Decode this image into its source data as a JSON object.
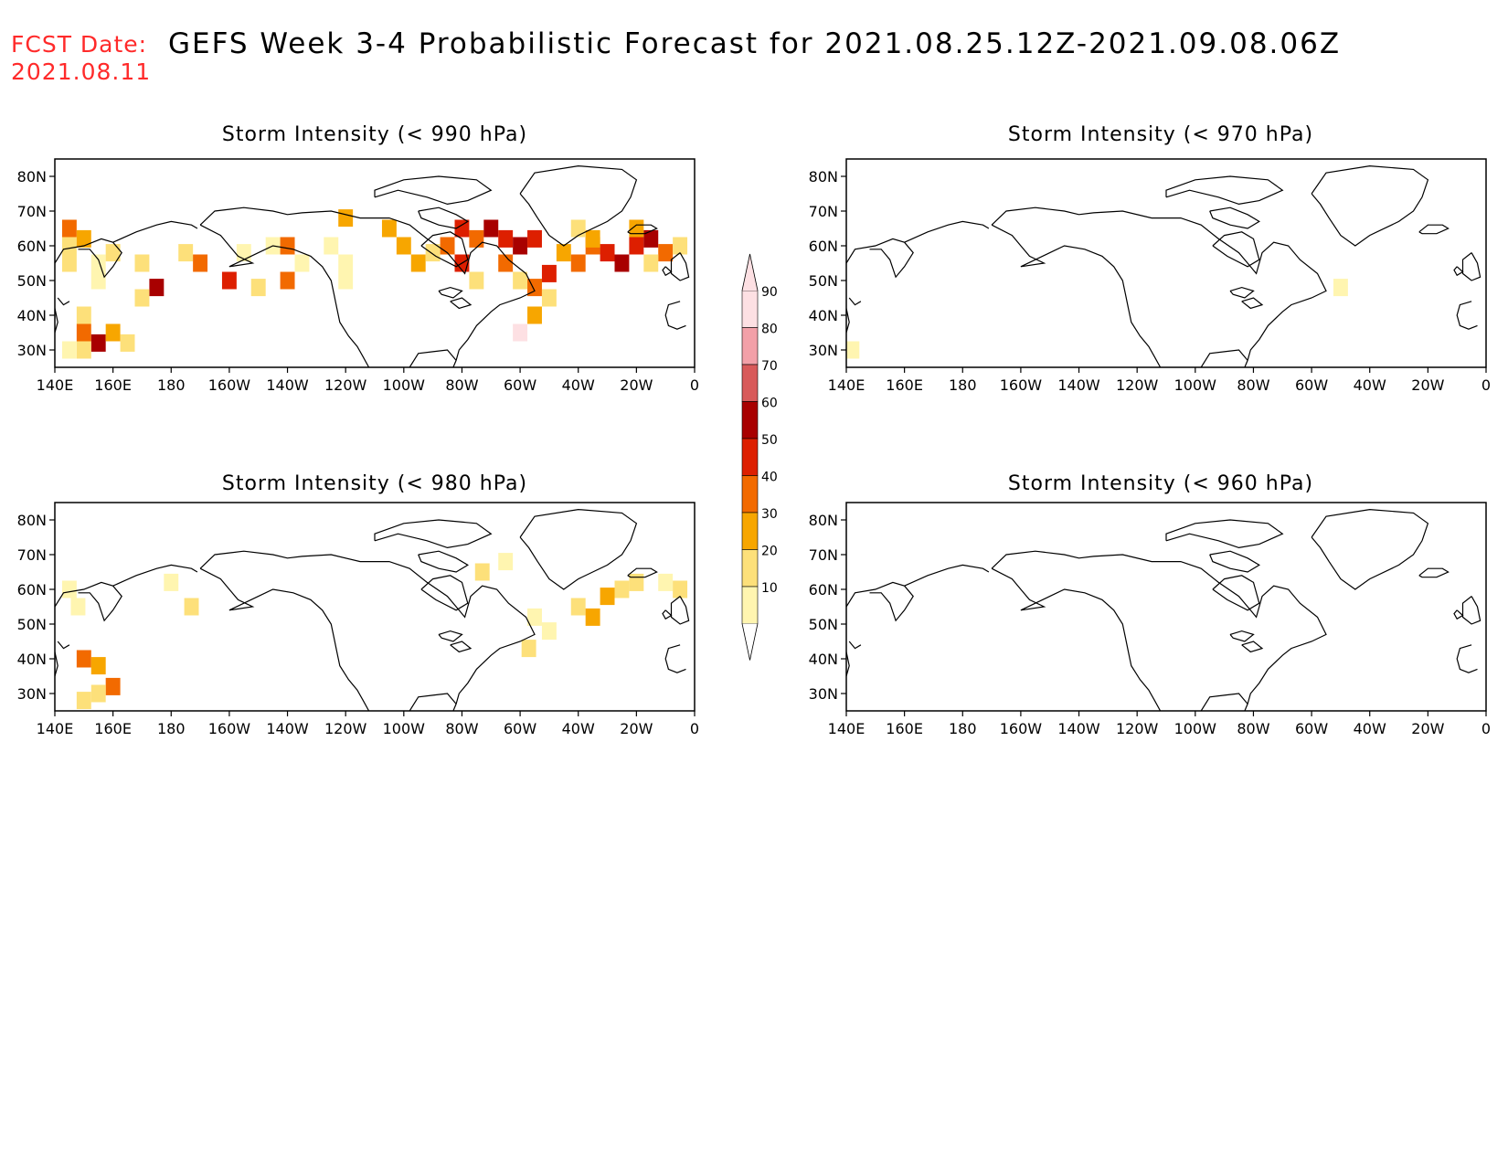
{
  "header": {
    "fcst_label": "FCST Date:",
    "fcst_date": "2021.08.11",
    "title": "GEFS Week 3-4 Probabilistic Forecast for 2021.08.25.12Z-2021.09.08.06Z"
  },
  "axes": {
    "lon_labels": [
      "140E",
      "160E",
      "180",
      "160W",
      "140W",
      "120W",
      "100W",
      "80W",
      "60W",
      "40W",
      "20W",
      "0"
    ],
    "lat_labels": [
      "80N",
      "70N",
      "60N",
      "50N",
      "40N",
      "30N"
    ]
  },
  "colorbar": {
    "levels": [
      "10",
      "20",
      "30",
      "40",
      "50",
      "60",
      "70",
      "80",
      "90"
    ],
    "colors": [
      "#fff5b0",
      "#fde07a",
      "#f7a600",
      "#f26a00",
      "#dd1f00",
      "#a80000",
      "#d85a5a",
      "#f2a0a8",
      "#fde0e3"
    ]
  },
  "panels": [
    {
      "id": "p990",
      "title": "Storm Intensity (< 990 hPa)"
    },
    {
      "id": "p970",
      "title": "Storm Intensity (< 970 hPa)"
    },
    {
      "id": "p980",
      "title": "Storm Intensity (< 980 hPa)"
    },
    {
      "id": "p960",
      "title": "Storm Intensity (< 960 hPa)"
    }
  ],
  "chart_data": {
    "type": "heatmap",
    "units": "probability (%)",
    "lon_range": [
      140,
      360
    ],
    "lat_range": [
      25,
      85
    ],
    "grid_step_deg": 5,
    "panels": [
      {
        "threshold_hpa": 990,
        "cells": [
          [
            145,
            65,
            40
          ],
          [
            145,
            60,
            20
          ],
          [
            150,
            62,
            30
          ],
          [
            145,
            55,
            20
          ],
          [
            155,
            55,
            10
          ],
          [
            160,
            58,
            20
          ],
          [
            155,
            50,
            10
          ],
          [
            150,
            40,
            20
          ],
          [
            150,
            35,
            40
          ],
          [
            155,
            32,
            60
          ],
          [
            160,
            35,
            30
          ],
          [
            165,
            32,
            20
          ],
          [
            150,
            30,
            20
          ],
          [
            145,
            30,
            10
          ],
          [
            170,
            55,
            20
          ],
          [
            175,
            48,
            60
          ],
          [
            170,
            45,
            20
          ],
          [
            185,
            58,
            20
          ],
          [
            190,
            55,
            40
          ],
          [
            200,
            50,
            50
          ],
          [
            205,
            58,
            10
          ],
          [
            215,
            60,
            10
          ],
          [
            220,
            60,
            40
          ],
          [
            225,
            55,
            10
          ],
          [
            210,
            48,
            20
          ],
          [
            220,
            50,
            40
          ],
          [
            240,
            68,
            30
          ],
          [
            235,
            60,
            10
          ],
          [
            240,
            55,
            10
          ],
          [
            240,
            50,
            10
          ],
          [
            255,
            65,
            30
          ],
          [
            260,
            60,
            30
          ],
          [
            265,
            55,
            30
          ],
          [
            275,
            60,
            40
          ],
          [
            270,
            58,
            20
          ],
          [
            280,
            65,
            50
          ],
          [
            285,
            62,
            40
          ],
          [
            280,
            55,
            50
          ],
          [
            285,
            50,
            20
          ],
          [
            290,
            65,
            60
          ],
          [
            295,
            62,
            50
          ],
          [
            300,
            60,
            60
          ],
          [
            305,
            62,
            50
          ],
          [
            295,
            55,
            40
          ],
          [
            300,
            50,
            20
          ],
          [
            305,
            48,
            40
          ],
          [
            310,
            52,
            50
          ],
          [
            310,
            45,
            20
          ],
          [
            305,
            40,
            30
          ],
          [
            300,
            35,
            90
          ],
          [
            315,
            58,
            30
          ],
          [
            320,
            55,
            40
          ],
          [
            325,
            60,
            40
          ],
          [
            330,
            58,
            50
          ],
          [
            335,
            55,
            60
          ],
          [
            340,
            60,
            50
          ],
          [
            345,
            62,
            60
          ],
          [
            350,
            58,
            40
          ],
          [
            345,
            55,
            20
          ],
          [
            355,
            60,
            20
          ],
          [
            340,
            65,
            30
          ],
          [
            325,
            62,
            30
          ],
          [
            320,
            65,
            20
          ]
        ]
      },
      {
        "threshold_hpa": 970,
        "cells": [
          [
            310,
            48,
            10
          ],
          [
            142,
            30,
            10
          ]
        ]
      },
      {
        "threshold_hpa": 980,
        "cells": [
          [
            145,
            60,
            10
          ],
          [
            148,
            55,
            10
          ],
          [
            150,
            40,
            40
          ],
          [
            155,
            38,
            30
          ],
          [
            160,
            32,
            40
          ],
          [
            155,
            30,
            20
          ],
          [
            150,
            28,
            20
          ],
          [
            180,
            62,
            10
          ],
          [
            187,
            55,
            20
          ],
          [
            287,
            65,
            20
          ],
          [
            295,
            68,
            10
          ],
          [
            305,
            52,
            10
          ],
          [
            310,
            48,
            10
          ],
          [
            303,
            43,
            20
          ],
          [
            320,
            55,
            20
          ],
          [
            325,
            52,
            30
          ],
          [
            330,
            58,
            30
          ],
          [
            335,
            60,
            20
          ],
          [
            340,
            62,
            20
          ],
          [
            350,
            62,
            10
          ],
          [
            355,
            60,
            20
          ]
        ]
      },
      {
        "threshold_hpa": 960,
        "cells": []
      }
    ]
  }
}
